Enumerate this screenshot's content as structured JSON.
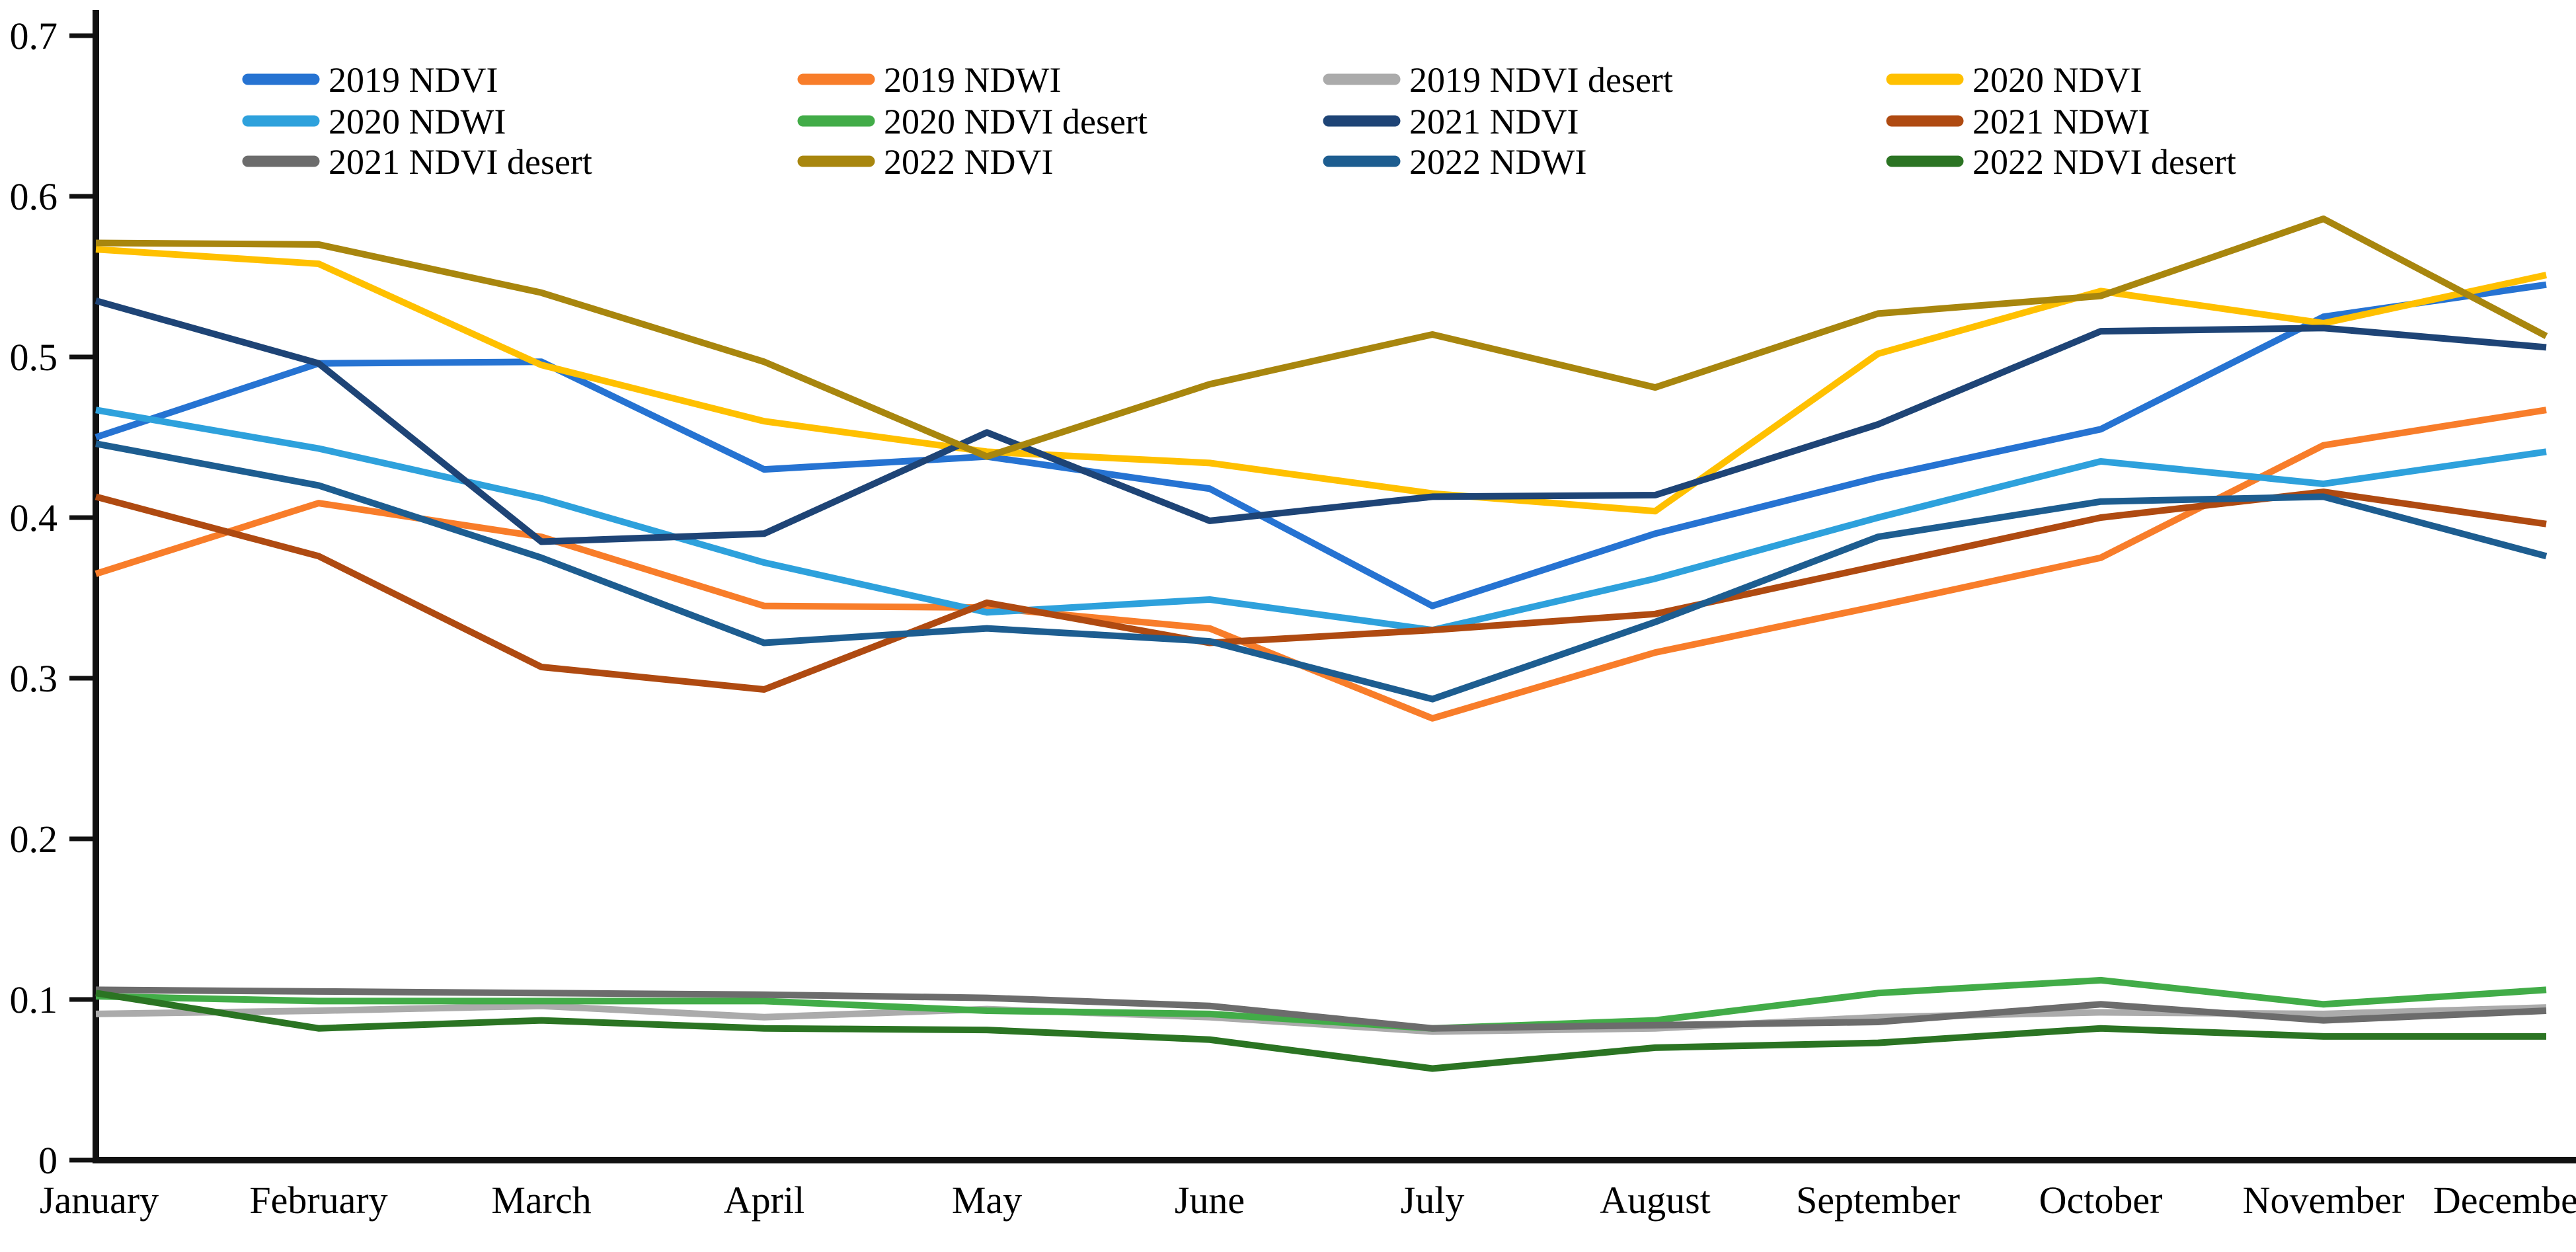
{
  "page": {
    "background": "#ffffff"
  },
  "chart_data": {
    "type": "line",
    "categories": [
      "January",
      "February",
      "March",
      "April",
      "May",
      "June",
      "July",
      "August",
      "September",
      "October",
      "November",
      "December"
    ],
    "xlabel": "",
    "ylabel": "",
    "ylim": [
      0,
      0.7
    ],
    "grid": false,
    "legend_position": "top",
    "yticks": [
      {
        "value": 0.0,
        "label": "0"
      },
      {
        "value": 0.1,
        "label": "0.1"
      },
      {
        "value": 0.2,
        "label": "0.2"
      },
      {
        "value": 0.3,
        "label": "0.3"
      },
      {
        "value": 0.4,
        "label": "0.4"
      },
      {
        "value": 0.5,
        "label": "0.5"
      },
      {
        "value": 0.6,
        "label": "0.6"
      },
      {
        "value": 0.7,
        "label": "0.7"
      }
    ],
    "series": [
      {
        "name": "2019 NDVI",
        "color": "#2673D2",
        "values": [
          0.45,
          0.496,
          0.497,
          0.43,
          0.438,
          0.418,
          0.345,
          0.39,
          0.425,
          0.455,
          0.525,
          0.545
        ]
      },
      {
        "name": "2019 NDWI",
        "color": "#F87D2A",
        "values": [
          0.365,
          0.409,
          0.388,
          0.345,
          0.344,
          0.331,
          0.275,
          0.316,
          0.345,
          0.375,
          0.445,
          0.467
        ]
      },
      {
        "name": "2019 NDVI desert",
        "color": "#ABABAB",
        "values": [
          0.091,
          0.093,
          0.096,
          0.089,
          0.094,
          0.089,
          0.08,
          0.082,
          0.089,
          0.092,
          0.091,
          0.095
        ]
      },
      {
        "name": "2020 NDVI",
        "color": "#FFC000",
        "values": [
          0.567,
          0.558,
          0.495,
          0.46,
          0.441,
          0.434,
          0.415,
          0.404,
          0.502,
          0.541,
          0.521,
          0.551
        ]
      },
      {
        "name": "2020 NDWI",
        "color": "#2EA1DC",
        "values": [
          0.467,
          0.443,
          0.412,
          0.372,
          0.341,
          0.349,
          0.33,
          0.362,
          0.4,
          0.435,
          0.421,
          0.441
        ]
      },
      {
        "name": "2020 NDVI desert",
        "color": "#42AC48",
        "values": [
          0.102,
          0.099,
          0.099,
          0.099,
          0.093,
          0.091,
          0.082,
          0.087,
          0.104,
          0.112,
          0.097,
          0.106
        ]
      },
      {
        "name": "2021 NDVI",
        "color": "#1E4476",
        "values": [
          0.535,
          0.496,
          0.385,
          0.39,
          0.453,
          0.398,
          0.413,
          0.414,
          0.458,
          0.516,
          0.518,
          0.506
        ]
      },
      {
        "name": "2021 NDWI",
        "color": "#AF4A11",
        "values": [
          0.413,
          0.376,
          0.307,
          0.293,
          0.347,
          0.322,
          0.33,
          0.34,
          0.37,
          0.4,
          0.416,
          0.396
        ]
      },
      {
        "name": "2021 NDVI desert",
        "color": "#6C6C6C",
        "values": [
          0.106,
          0.105,
          0.104,
          0.103,
          0.101,
          0.096,
          0.082,
          0.084,
          0.086,
          0.097,
          0.087,
          0.093
        ]
      },
      {
        "name": "2022 NDVI",
        "color": "#A8860E",
        "values": [
          0.571,
          0.57,
          0.54,
          0.497,
          0.438,
          0.483,
          0.514,
          0.481,
          0.527,
          0.538,
          0.586,
          0.513
        ]
      },
      {
        "name": "2022 NDWI",
        "color": "#1D5D90",
        "values": [
          0.446,
          0.42,
          0.375,
          0.322,
          0.331,
          0.323,
          0.287,
          0.335,
          0.388,
          0.41,
          0.413,
          0.376
        ]
      },
      {
        "name": "2022 NDVI desert",
        "color": "#2B7423",
        "values": [
          0.104,
          0.082,
          0.087,
          0.082,
          0.081,
          0.075,
          0.057,
          0.07,
          0.073,
          0.082,
          0.077,
          0.077
        ]
      }
    ]
  }
}
